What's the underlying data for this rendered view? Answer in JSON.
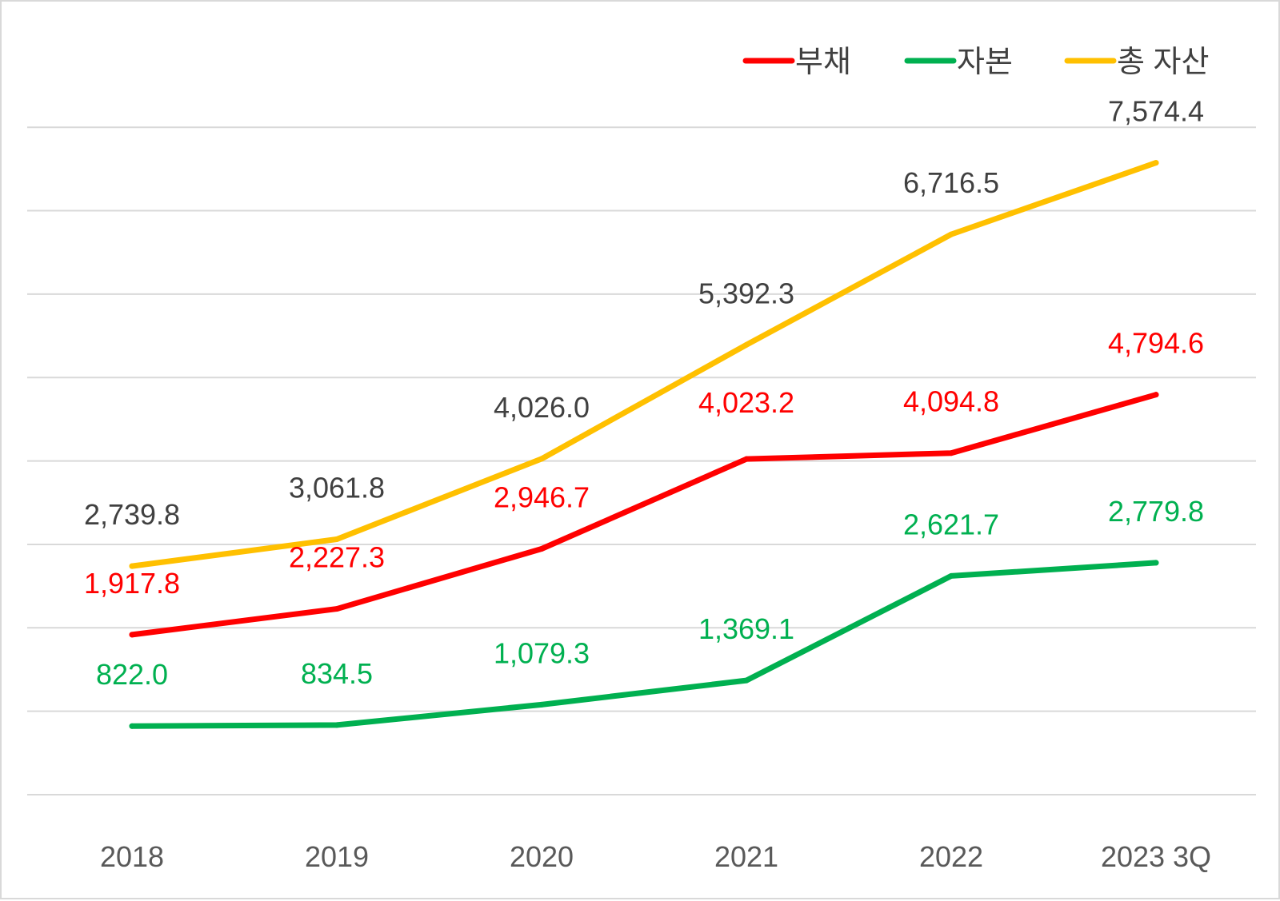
{
  "chart_data": {
    "type": "line",
    "title": "",
    "xlabel": "",
    "ylabel": "",
    "categories": [
      "2018",
      "2019",
      "2020",
      "2021",
      "2022",
      "2023 3Q"
    ],
    "ylim": [
      0,
      8000
    ],
    "grid": true,
    "legend_position": "top-right",
    "series": [
      {
        "name": "부채",
        "color": "#ff0000",
        "values": [
          1917.8,
          2227.3,
          2946.7,
          4023.2,
          4094.8,
          4794.6
        ],
        "labels": [
          "1,917.8",
          "2,227.3",
          "2,946.7",
          "4,023.2",
          "4,094.8",
          "4,794.6"
        ],
        "label_color": "#ff0000"
      },
      {
        "name": "자본",
        "color": "#00b050",
        "values": [
          822.0,
          834.5,
          1079.3,
          1369.1,
          2621.7,
          2779.8
        ],
        "labels": [
          "822.0",
          "834.5",
          "1,079.3",
          "1,369.1",
          "2,621.7",
          "2,779.8"
        ],
        "label_color": "#00b050"
      },
      {
        "name": "총 자산",
        "color": "#ffc000",
        "values": [
          2739.8,
          3061.8,
          4026.0,
          5392.3,
          6716.5,
          7574.4
        ],
        "labels": [
          "2,739.8",
          "3,061.8",
          "4,026.0",
          "5,392.3",
          "6,716.5",
          "7,574.4"
        ],
        "label_color": "#404040"
      }
    ]
  }
}
